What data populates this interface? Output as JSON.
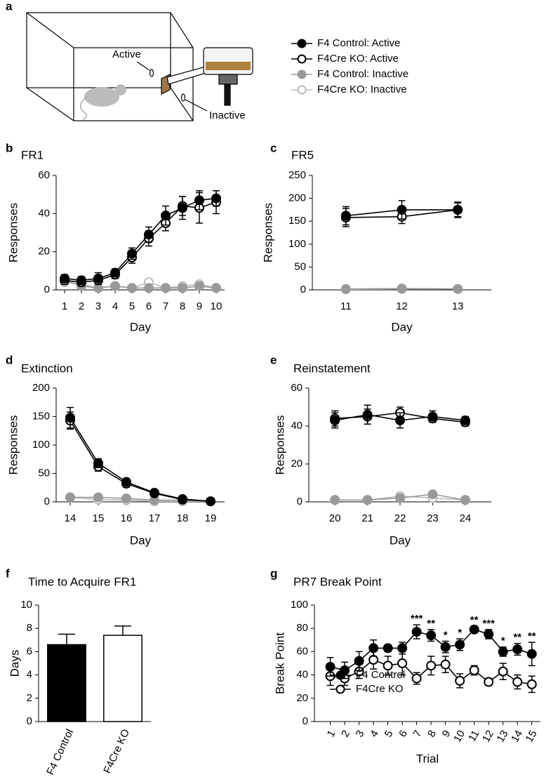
{
  "diagram": {
    "panel": "a",
    "labels": [
      "Active",
      "Inactive"
    ]
  },
  "chart_data": [
    {
      "panel": "b",
      "type": "line",
      "title": "FR1",
      "xlabel": "Day",
      "ylabel": "Responses",
      "x": [
        1,
        2,
        3,
        4,
        5,
        6,
        7,
        8,
        9,
        10
      ],
      "xlim": [
        0.5,
        10.5
      ],
      "xticks": [
        1,
        2,
        3,
        4,
        5,
        6,
        7,
        8,
        9,
        10
      ],
      "ylim": [
        0,
        60
      ],
      "yticks": [
        0,
        20,
        40,
        60
      ],
      "legend": "outside",
      "series": [
        {
          "name": "F4 Control: Active",
          "color": "#000000",
          "marker_fill": "#000000",
          "values": [
            6,
            5,
            6,
            9,
            19,
            29,
            39,
            43,
            47,
            48
          ],
          "errors": [
            2,
            2,
            3,
            2,
            3,
            4,
            5,
            6,
            5,
            4
          ]
        },
        {
          "name": "F4Cre KO: Active",
          "color": "#000000",
          "marker_fill": "#ffffff",
          "values": [
            5,
            4,
            5,
            8,
            17,
            27,
            35,
            44,
            43,
            46
          ],
          "errors": [
            2,
            2,
            2,
            2,
            3,
            4,
            4,
            5,
            8,
            6
          ]
        },
        {
          "name": "F4 Control: Inactive",
          "color": "#999999",
          "marker_fill": "#999999",
          "values": [
            5,
            2,
            1,
            2,
            1,
            1,
            1,
            1,
            2,
            1
          ]
        },
        {
          "name": "F4Cre KO: Inactive",
          "color": "#bbbbbb",
          "marker_fill": "#ffffff",
          "values": [
            4,
            3,
            1,
            2,
            1,
            4,
            1,
            2,
            3,
            1
          ]
        }
      ]
    },
    {
      "panel": "c",
      "type": "line",
      "title": "FR5",
      "xlabel": "Day",
      "ylabel": "Responses",
      "x": [
        11,
        12,
        13
      ],
      "xlim": [
        10.4,
        13.6
      ],
      "xticks": [
        11,
        12,
        13
      ],
      "ylim": [
        0,
        250
      ],
      "yticks": [
        0,
        50,
        100,
        150,
        200,
        250
      ],
      "series": [
        {
          "color": "#000000",
          "marker_fill": "#000000",
          "values": [
            162,
            175,
            175
          ],
          "errors": [
            20,
            20,
            15
          ]
        },
        {
          "color": "#000000",
          "marker_fill": "#ffffff",
          "values": [
            158,
            160,
            175
          ],
          "errors": [
            20,
            15,
            17
          ]
        },
        {
          "color": "#999999",
          "marker_fill": "#999999",
          "values": [
            2,
            3,
            2
          ]
        },
        {
          "color": "#bbbbbb",
          "marker_fill": "#ffffff",
          "values": [
            1,
            2,
            2
          ]
        }
      ]
    },
    {
      "panel": "d",
      "type": "line",
      "title": "Extinction",
      "xlabel": "Day",
      "ylabel": "Responses",
      "x": [
        14,
        15,
        16,
        17,
        18,
        19
      ],
      "xlim": [
        13.5,
        19.5
      ],
      "xticks": [
        14,
        15,
        16,
        17,
        18,
        19
      ],
      "ylim": [
        0,
        200
      ],
      "yticks": [
        0,
        50,
        100,
        150,
        200
      ],
      "series": [
        {
          "color": "#000000",
          "marker_fill": "#000000",
          "values": [
            148,
            68,
            35,
            16,
            5,
            1
          ],
          "errors": [
            18,
            8,
            6,
            3,
            2,
            1
          ]
        },
        {
          "color": "#000000",
          "marker_fill": "#ffffff",
          "values": [
            143,
            62,
            32,
            15,
            4,
            1
          ],
          "errors": [
            15,
            8,
            6,
            3,
            2,
            1
          ]
        },
        {
          "color": "#999999",
          "marker_fill": "#999999",
          "values": [
            8,
            8,
            6,
            3,
            3,
            1
          ]
        },
        {
          "color": "#bbbbbb",
          "marker_fill": "#ffffff",
          "values": [
            8,
            4,
            3,
            1,
            1,
            1
          ]
        }
      ]
    },
    {
      "panel": "e",
      "type": "line",
      "title": "Reinstatement",
      "xlabel": "Day",
      "ylabel": "Responses",
      "x": [
        20,
        21,
        22,
        23,
        24
      ],
      "xlim": [
        19.2,
        24.8
      ],
      "xticks": [
        20,
        21,
        22,
        23,
        24
      ],
      "ylim": [
        0,
        60
      ],
      "yticks": [
        0,
        20,
        40,
        60
      ],
      "series": [
        {
          "color": "#000000",
          "marker_fill": "#000000",
          "values": [
            43,
            46,
            43,
            45,
            43
          ],
          "errors": [
            4,
            5,
            4,
            3,
            2
          ]
        },
        {
          "color": "#000000",
          "marker_fill": "#ffffff",
          "values": [
            44,
            45,
            47,
            44,
            42
          ],
          "errors": [
            4,
            4,
            3,
            2,
            2
          ]
        },
        {
          "color": "#999999",
          "marker_fill": "#999999",
          "values": [
            1,
            1,
            2,
            4,
            1
          ]
        },
        {
          "color": "#bbbbbb",
          "marker_fill": "#ffffff",
          "values": [
            1,
            1,
            3,
            2,
            1
          ]
        }
      ]
    },
    {
      "panel": "f",
      "type": "bar",
      "title": "Time to Acquire FR1",
      "ylabel": "Days",
      "categories": [
        "F4 Control",
        "F4Cre KO"
      ],
      "values": [
        6.6,
        7.4
      ],
      "errors": [
        0.9,
        0.8
      ],
      "colors": [
        "#000000",
        "#ffffff"
      ],
      "ylim": [
        0,
        10
      ],
      "yticks": [
        0,
        2,
        4,
        6,
        8,
        10
      ]
    },
    {
      "panel": "g",
      "type": "line",
      "title": "PR7 Break Point",
      "xlabel": "Trial",
      "ylabel": "Break Point",
      "x": [
        1,
        2,
        3,
        4,
        5,
        6,
        7,
        8,
        9,
        10,
        11,
        12,
        13,
        14,
        15
      ],
      "xlim": [
        -0.1,
        15.6
      ],
      "xticks": [
        1,
        2,
        3,
        4,
        5,
        6,
        7,
        8,
        9,
        10,
        11,
        12,
        13,
        14,
        15
      ],
      "ylim": [
        0,
        100
      ],
      "yticks": [
        0,
        20,
        40,
        60,
        80,
        100
      ],
      "legend": "lower left",
      "series": [
        {
          "name": "F4 Control",
          "color": "#000000",
          "marker_fill": "#000000",
          "values": [
            47,
            44,
            52,
            63,
            63,
            63,
            77,
            74,
            64,
            66,
            79,
            75,
            60,
            62,
            58
          ],
          "errors": [
            8,
            7,
            8,
            7,
            3,
            5,
            6,
            5,
            5,
            5,
            3,
            4,
            4,
            5,
            10
          ]
        },
        {
          "name": "F4Cre KO",
          "color": "#000000",
          "marker_fill": "#ffffff",
          "values": [
            39,
            37,
            43,
            53,
            48,
            50,
            37,
            48,
            49,
            35,
            44,
            34,
            43,
            34,
            32
          ],
          "errors": [
            8,
            6,
            6,
            8,
            8,
            10,
            5,
            8,
            7,
            6,
            4,
            3,
            7,
            6,
            7
          ]
        }
      ],
      "annotations": [
        {
          "x": 7,
          "label": "***"
        },
        {
          "x": 8,
          "label": "**"
        },
        {
          "x": 9,
          "label": "*"
        },
        {
          "x": 10,
          "label": "*"
        },
        {
          "x": 11,
          "label": "**"
        },
        {
          "x": 12,
          "label": "***"
        },
        {
          "x": 13,
          "label": "*"
        },
        {
          "x": 14,
          "label": "**"
        },
        {
          "x": 15,
          "label": "**"
        }
      ]
    }
  ]
}
